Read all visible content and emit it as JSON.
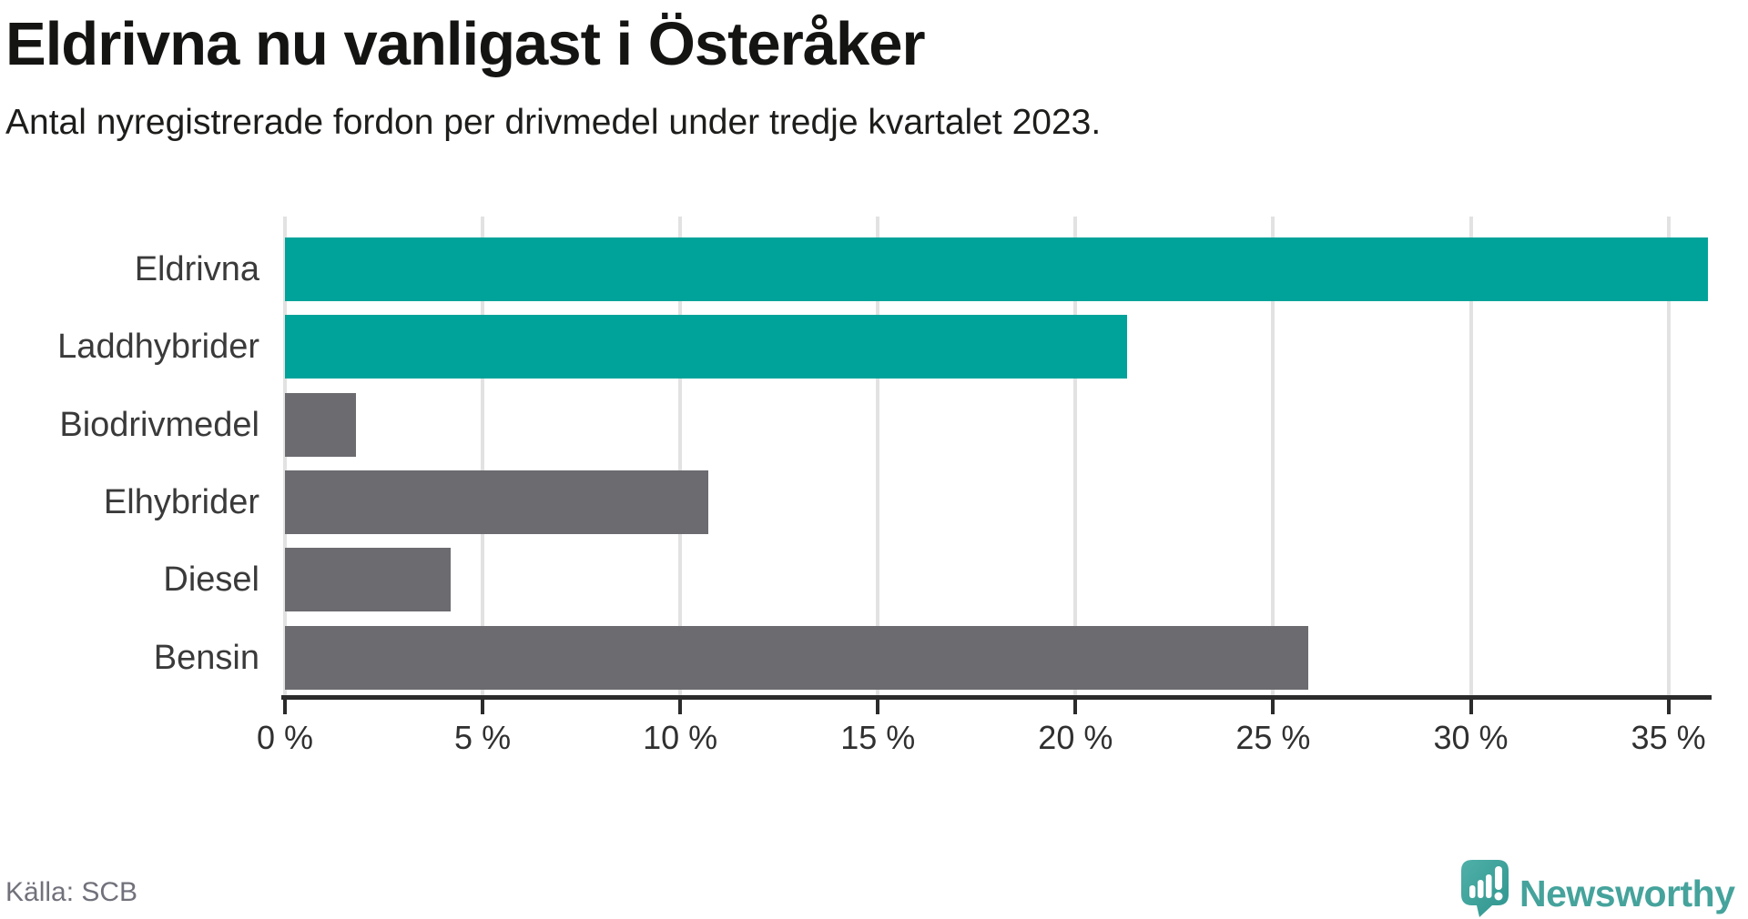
{
  "header": {
    "title": "Eldrivna nu vanligast i Österåker",
    "subtitle": "Antal nyregistrerade fordon per drivmedel under tredje kvartalet 2023."
  },
  "chart_data": {
    "type": "bar",
    "orientation": "horizontal",
    "title": "Eldrivna nu vanligast i Österåker",
    "subtitle": "Antal nyregistrerade fordon per drivmedel under tredje kvartalet 2023.",
    "categories": [
      "Eldrivna",
      "Laddhybrider",
      "Biodrivmedel",
      "Elhybrider",
      "Diesel",
      "Bensin"
    ],
    "values": [
      36.0,
      21.3,
      1.8,
      10.7,
      4.2,
      25.9
    ],
    "unit": "%",
    "xlim": [
      0,
      36
    ],
    "xticks": [
      0,
      5,
      10,
      15,
      20,
      25,
      30,
      35
    ],
    "xtick_suffix": " %",
    "grid": true,
    "legend": "none",
    "bar_colors": [
      "#00a39a",
      "#00a39a",
      "#6b6b70",
      "#6b6b70",
      "#6b6b70",
      "#6b6b70"
    ],
    "highlight_color": "#00a39a",
    "default_color": "#6b6b70",
    "gridline_color": "#e2e2e2",
    "axis_color": "#2b2b2b"
  },
  "footer": {
    "source": "Källa: SCB",
    "brand": "Newsworthy"
  }
}
